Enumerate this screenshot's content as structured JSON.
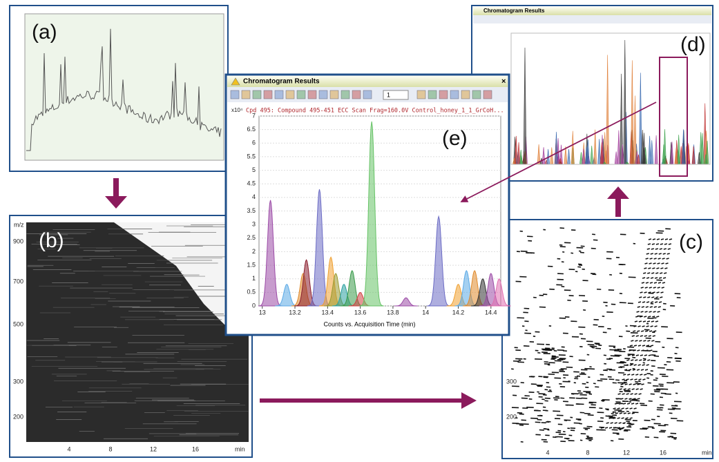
{
  "panels": {
    "a": {
      "label": "(a)"
    },
    "b": {
      "label": "(b)",
      "y_axis_title": "m/z",
      "y_ticks": [
        "900",
        "700",
        "500",
        "300",
        "200"
      ],
      "x_ticks": [
        "4",
        "8",
        "12",
        "16"
      ],
      "x_unit": "min"
    },
    "c": {
      "label": "(c)",
      "y_ticks": [
        "300",
        "200"
      ],
      "x_ticks": [
        "4",
        "8",
        "12",
        "16"
      ],
      "x_unit": "min"
    },
    "d": {
      "label": "(d)",
      "window_title": "Chromatogram Results"
    },
    "e": {
      "label": "(e)",
      "window_title": "Chromatogram Results",
      "toolbar_field": "1",
      "chart_data": {
        "type": "peaks",
        "subtitle": "Cpd 495: Compound 495-451 ECC Scan Frag=160.0V Control_honey_1_1_GrCoH...",
        "y_scale_label": "x10⁴",
        "xlabel": "Counts vs. Acquisition Time (min)",
        "xlim": [
          12.98,
          14.46
        ],
        "ylim": [
          0,
          7
        ],
        "xticks": [
          13,
          13.2,
          13.4,
          13.6,
          13.8,
          14,
          14.2,
          14.4
        ],
        "yticks": [
          0,
          0.5,
          1,
          1.5,
          2,
          2.5,
          3,
          3.5,
          4,
          4.5,
          5,
          5.5,
          6,
          6.5,
          7
        ],
        "grid": true,
        "peaks": [
          {
            "x": 13.05,
            "height": 3.9,
            "color": "#9b4aa6"
          },
          {
            "x": 13.15,
            "height": 0.8,
            "color": "#5aa9e6"
          },
          {
            "x": 13.25,
            "height": 1.2,
            "color": "#e08a2c"
          },
          {
            "x": 13.27,
            "height": 1.7,
            "color": "#8b1e2e"
          },
          {
            "x": 13.35,
            "height": 4.3,
            "color": "#6b6bc4"
          },
          {
            "x": 13.42,
            "height": 1.8,
            "color": "#f0a030"
          },
          {
            "x": 13.45,
            "height": 1.2,
            "color": "#9a9a30"
          },
          {
            "x": 13.5,
            "height": 0.8,
            "color": "#2aa0a0"
          },
          {
            "x": 13.55,
            "height": 1.3,
            "color": "#3a9a4a"
          },
          {
            "x": 13.6,
            "height": 0.5,
            "color": "#d04040"
          },
          {
            "x": 13.67,
            "height": 6.8,
            "color": "#66c266"
          },
          {
            "x": 13.88,
            "height": 0.3,
            "color": "#9b4aa6"
          },
          {
            "x": 14.08,
            "height": 3.3,
            "color": "#6b6bc4"
          },
          {
            "x": 14.2,
            "height": 0.8,
            "color": "#f0a030"
          },
          {
            "x": 14.25,
            "height": 1.3,
            "color": "#5aa9e6"
          },
          {
            "x": 14.3,
            "height": 1.3,
            "color": "#e08a2c"
          },
          {
            "x": 14.35,
            "height": 1.0,
            "color": "#333333"
          },
          {
            "x": 14.4,
            "height": 1.2,
            "color": "#9b4aa6"
          },
          {
            "x": 14.45,
            "height": 1.0,
            "color": "#e070b0"
          }
        ]
      }
    }
  }
}
